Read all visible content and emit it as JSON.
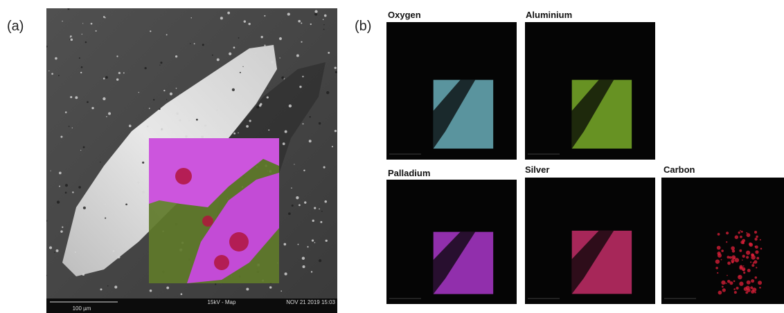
{
  "panel_a": {
    "label": "(a)",
    "scale_bar": "100 µm",
    "mode": "15kV - Map",
    "date": "NOV 21 2019 15:03"
  },
  "panel_b": {
    "label": "(b)",
    "maps": [
      {
        "element": "Oxygen",
        "color": "#6fb8c4"
      },
      {
        "element": "Aluminium",
        "color": "#7fb52a"
      },
      {
        "element": "Palladium",
        "color": "#b43ad6"
      },
      {
        "element": "Silver",
        "color": "#d0306e"
      },
      {
        "element": "Carbon",
        "color": "#e0203a"
      }
    ]
  }
}
